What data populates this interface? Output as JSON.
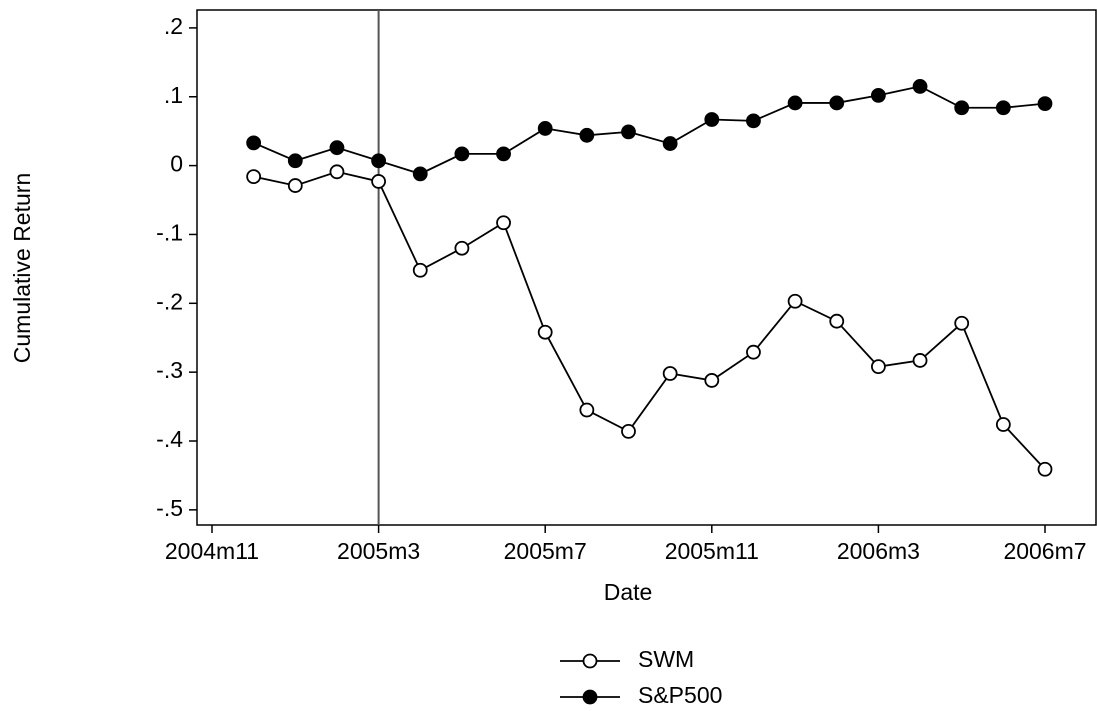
{
  "chart_data": {
    "type": "line",
    "x_label": "Date",
    "y_label": "Cumulative Return",
    "x": [
      "2004m12",
      "2005m1",
      "2005m2",
      "2005m3",
      "2005m4",
      "2005m5",
      "2005m6",
      "2005m7",
      "2005m8",
      "2005m9",
      "2005m10",
      "2005m11",
      "2005m12",
      "2006m1",
      "2006m2",
      "2006m3",
      "2006m4",
      "2006m5",
      "2006m6",
      "2006m7"
    ],
    "series": [
      {
        "name": "SWM",
        "color": "#000000",
        "marker": "hollow",
        "values": [
          -0.016,
          -0.029,
          -0.009,
          -0.023,
          -0.152,
          -0.12,
          -0.083,
          -0.242,
          -0.355,
          -0.386,
          -0.302,
          -0.312,
          -0.271,
          -0.197,
          -0.226,
          -0.292,
          -0.283,
          -0.229,
          -0.376,
          -0.441
        ]
      },
      {
        "name": "S&P500",
        "color": "#000000",
        "marker": "filled",
        "values": [
          0.033,
          0.007,
          0.026,
          0.007,
          -0.012,
          0.017,
          0.017,
          0.054,
          0.044,
          0.049,
          0.032,
          0.067,
          0.065,
          0.091,
          0.091,
          0.102,
          0.115,
          0.084,
          0.084,
          0.09
        ]
      }
    ],
    "xlim": [
      "2004m11",
      "2006m7"
    ],
    "xticks": [
      "2004m11",
      "2005m3",
      "2005m7",
      "2005m11",
      "2006m3",
      "2006m7"
    ],
    "xline": "2005m3",
    "ylim": [
      -0.522,
      0.226
    ],
    "yticks": [
      {
        "value": 0.2,
        "label": ".2"
      },
      {
        "value": 0.1,
        "label": ".1"
      },
      0,
      {
        "value": -0.1,
        "label": "-.1"
      },
      {
        "value": -0.2,
        "label": "-.2"
      },
      {
        "value": -0.3,
        "label": "-.3"
      },
      {
        "value": -0.4,
        "label": "-.4"
      },
      {
        "value": -0.5,
        "label": "-.5"
      }
    ],
    "legend": "bottom"
  }
}
